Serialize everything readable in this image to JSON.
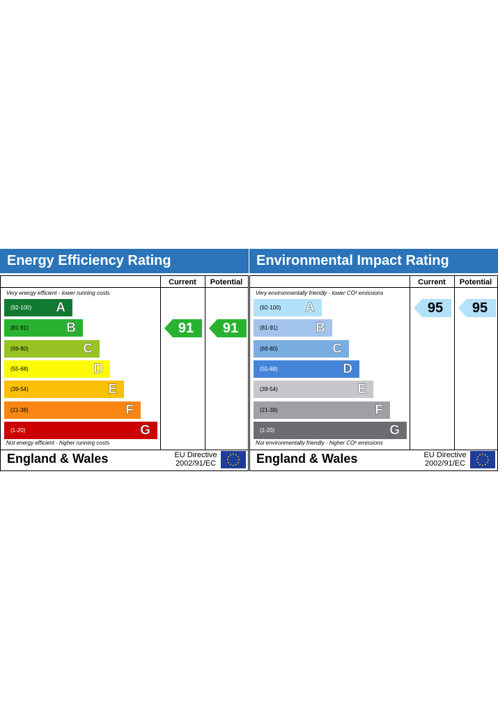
{
  "chart_data": [
    {
      "type": "bar",
      "title": "Energy Efficiency Rating",
      "top_note": "Very energy efficient - lower running costs",
      "bottom_note": "Not energy efficient - higher running costs",
      "columns": [
        "Current",
        "Potential"
      ],
      "bands": [
        {
          "letter": "A",
          "range": "(92-100)",
          "color": "#008054"
        },
        {
          "letter": "B",
          "range": "(81-91)",
          "color": "#19b459"
        },
        {
          "letter": "C",
          "range": "(69-80)",
          "color": "#8dce46"
        },
        {
          "letter": "D",
          "range": "(55-68)",
          "color": "#ffd500"
        },
        {
          "letter": "E",
          "range": "(39-54)",
          "color": "#fcaa65"
        },
        {
          "letter": "F",
          "range": "(21-38)",
          "color": "#ef8023"
        },
        {
          "letter": "G",
          "range": "(1-20)",
          "color": "#e9153b"
        }
      ],
      "current": 91,
      "potential": 91,
      "arrow_color": "#19b459",
      "footer_country": "England & Wales",
      "directive": [
        "EU Directive",
        "2002/91/EC"
      ]
    },
    {
      "type": "bar",
      "title": "Environmental Impact Rating",
      "top_note": "Very environmentally friendly - lower CO² emissions",
      "bottom_note": "Not environmentally friendly - higher CO² emissions",
      "columns": [
        "Current",
        "Potential"
      ],
      "bands": [
        {
          "letter": "A",
          "range": "(92-100)",
          "color": "#b4e1f7"
        },
        {
          "letter": "B",
          "range": "(81-91)",
          "color": "#a1c4ea"
        },
        {
          "letter": "C",
          "range": "(69-80)",
          "color": "#7fb0e3"
        },
        {
          "letter": "D",
          "range": "(55-68)",
          "color": "#4a8ad8"
        },
        {
          "letter": "E",
          "range": "(39-54)",
          "color": "#c4c4c8"
        },
        {
          "letter": "F",
          "range": "(21-38)",
          "color": "#a3a2a8"
        },
        {
          "letter": "G",
          "range": "(1-20)",
          "color": "#6f6f74"
        }
      ],
      "current": 95,
      "potential": 95,
      "arrow_color": "#b4e1f7",
      "footer_country": "England & Wales",
      "directive": [
        "EU Directive",
        "2002/91/EC"
      ]
    }
  ],
  "colors": {
    "header_blue": "#2b74b9",
    "eer_bands_exact": [
      "#117a32",
      "#28b230",
      "#97c324",
      "#fdfc04",
      "#fbbf05",
      "#f98612",
      "#cc0000"
    ],
    "eir_bands_exact": [
      "#b3e1f9",
      "#a2c3ec",
      "#7aaee3",
      "#4585d9",
      "#c7c7cb",
      "#a09fa4",
      "#6d6d71"
    ],
    "eir_text_dark_bands": [
      4,
      5,
      6
    ]
  }
}
